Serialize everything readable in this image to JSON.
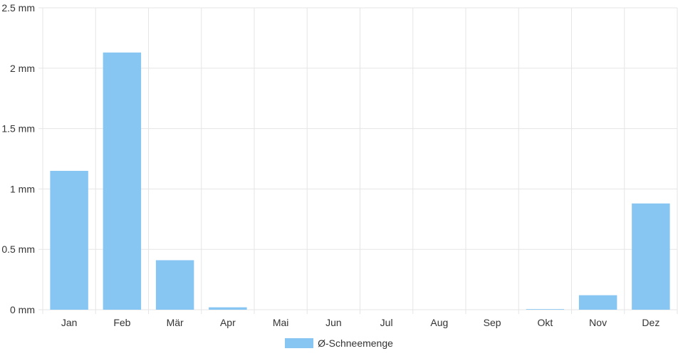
{
  "chart_data": {
    "type": "bar",
    "categories": [
      "Jan",
      "Feb",
      "Mär",
      "Apr",
      "Mai",
      "Jun",
      "Jul",
      "Aug",
      "Sep",
      "Okt",
      "Nov",
      "Dez"
    ],
    "series": [
      {
        "name": "Ø-Schneemenge",
        "values": [
          1.15,
          2.13,
          0.41,
          0.02,
          0,
          0,
          0,
          0,
          0,
          0.005,
          0.12,
          0.88
        ]
      }
    ],
    "ylim": [
      0,
      2.5
    ],
    "yticks": [
      0,
      0.5,
      1,
      1.5,
      2,
      2.5
    ],
    "y_unit": "mm",
    "grid": true,
    "legend_position": "bottom",
    "colors": {
      "bar": "#87C6F2",
      "grid": "#e5e5e5",
      "text": "#333333"
    }
  }
}
